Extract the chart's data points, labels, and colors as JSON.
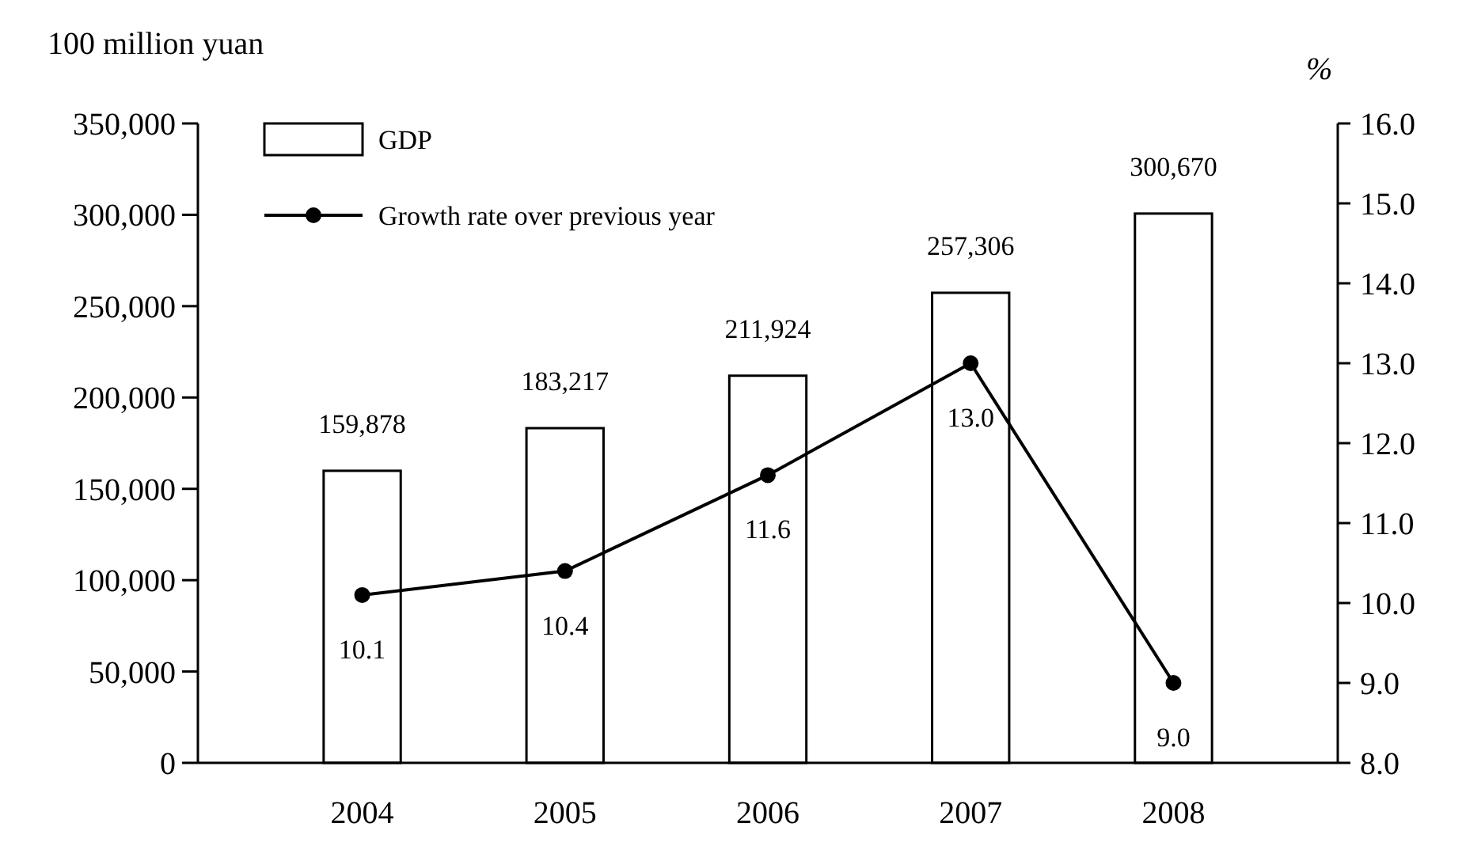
{
  "chart_data": {
    "type": "bar",
    "ylabel": "100 million yuan",
    "y2label": "%",
    "categories": [
      "2004",
      "2005",
      "2006",
      "2007",
      "2008"
    ],
    "series": [
      {
        "name": "GDP",
        "color": "#ffffff",
        "values": [
          159878,
          183217,
          211924,
          257306,
          300670
        ],
        "value_labels": [
          "159,878",
          "183,217",
          "211,924",
          "257,306",
          "300,670"
        ]
      },
      {
        "name": "Growth rate over previous year",
        "type": "line",
        "axis": "y2",
        "color": "#000000",
        "values": [
          10.1,
          10.4,
          11.6,
          13.0,
          9.0
        ],
        "value_labels": [
          "10.1",
          "10.4",
          "11.6",
          "13.0",
          "9.0"
        ]
      }
    ],
    "ylim": [
      0,
      350000
    ],
    "yticks": [
      {
        "value": 0,
        "label": "0"
      },
      {
        "value": 50000,
        "label": "50,000"
      },
      {
        "value": 100000,
        "label": "100,000"
      },
      {
        "value": 150000,
        "label": "150,000"
      },
      {
        "value": 200000,
        "label": "200,000"
      },
      {
        "value": 250000,
        "label": "250,000"
      },
      {
        "value": 300000,
        "label": "300,000"
      },
      {
        "value": 350000,
        "label": "350,000"
      }
    ],
    "y2lim": [
      8,
      16
    ],
    "y2ticks": [
      {
        "value": 8,
        "label": "8.0"
      },
      {
        "value": 9,
        "label": "9.0"
      },
      {
        "value": 10,
        "label": "10.0"
      },
      {
        "value": 11,
        "label": "11.0"
      },
      {
        "value": 12,
        "label": "12.0"
      },
      {
        "value": 13,
        "label": "13.0"
      },
      {
        "value": 14,
        "label": "14.0"
      },
      {
        "value": 15,
        "label": "15.0"
      },
      {
        "value": 16,
        "label": "16.0"
      }
    ],
    "legend": "top left",
    "marker": "circle",
    "line_style": "solid",
    "grid": false
  }
}
